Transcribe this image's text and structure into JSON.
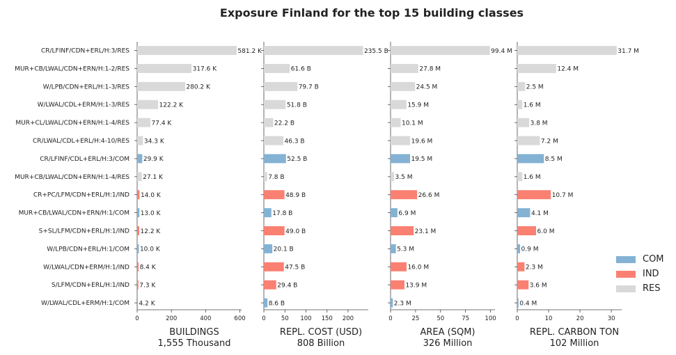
{
  "chart_data": {
    "type": "bar",
    "orientation": "horizontal",
    "title": "Exposure Finland for the top 15 building classes",
    "categories": [
      "CR/LFINF/CDN+ERL/H:3/RES",
      "MUR+CB/LWAL/CDN+ERN/H:1-2/RES",
      "W/LPB/CDN+ERL/H:1-3/RES",
      "W/LWAL/CDL+ERM/H:1-3/RES",
      "MUR+CL/LWAL/CDN+ERN/H:1-4/RES",
      "CR/LWAL/CDL+ERL/H:4-10/RES",
      "CR/LFINF/CDL+ERL/H:3/COM",
      "MUR+CB/LWAL/CDN+ERN/H:1-4/RES",
      "CR+PC/LFM/CDN+ERL/H:1/IND",
      "MUR+CB/LWAL/CDN+ERN/H:1/COM",
      "S+SL/LFM/CDN+ERL/H:1/IND",
      "W/LPB/CDN+ERL/H:1/COM",
      "W/LWAL/CDN+ERM/H:1/IND",
      "S/LFM/CDN+ERL/H:1/IND",
      "W/LWAL/CDL+ERM/H:1/COM"
    ],
    "occupancy": [
      "RES",
      "RES",
      "RES",
      "RES",
      "RES",
      "RES",
      "COM",
      "RES",
      "IND",
      "COM",
      "IND",
      "COM",
      "IND",
      "IND",
      "COM"
    ],
    "legend": [
      {
        "name": "COM",
        "color": "#84b2d4"
      },
      {
        "name": "IND",
        "color": "#fa8072"
      },
      {
        "name": "RES",
        "color": "#d9d9d9"
      }
    ],
    "legend_position": "right",
    "grid": false,
    "panels": [
      {
        "xlabel": "BUILDINGS",
        "sublabel": "1,555 Thousand",
        "xlim": [
          0,
          610
        ],
        "ticks": [
          0,
          200,
          400,
          600
        ],
        "tick_labels": [
          "0",
          "200",
          "400",
          "600"
        ],
        "values": [
          581.2,
          317.6,
          280.2,
          122.2,
          77.4,
          34.3,
          29.9,
          27.1,
          14.0,
          13.0,
          12.2,
          10.0,
          8.4,
          7.3,
          4.2
        ],
        "labels": [
          "581.2 K",
          "317.6 K",
          "280.2 K",
          "122.2 K",
          "77.4 K",
          "34.3 K",
          "29.9 K",
          "27.1 K",
          "14.0 K",
          "13.0 K",
          "12.2 K",
          "10.0 K",
          "8.4 K",
          "7.3 K",
          "4.2 K"
        ]
      },
      {
        "xlabel": "REPL. COST (USD)",
        "sublabel": "808 Billion",
        "xlim": [
          0,
          248
        ],
        "ticks": [
          0,
          50,
          100,
          150,
          200
        ],
        "tick_labels": [
          "0",
          "50",
          "100",
          "150",
          "200"
        ],
        "values": [
          235.5,
          61.6,
          79.7,
          51.8,
          22.2,
          46.3,
          52.5,
          7.8,
          48.9,
          17.8,
          49.0,
          20.1,
          47.5,
          29.4,
          8.6
        ],
        "labels": [
          "235.5 B",
          "61.6 B",
          "79.7 B",
          "51.8 B",
          "22.2 B",
          "46.3 B",
          "52.5 B",
          "7.8 B",
          "48.9 B",
          "17.8 B",
          "49.0 B",
          "20.1 B",
          "47.5 B",
          "29.4 B",
          "8.6 B"
        ]
      },
      {
        "xlabel": "AREA (SQM)",
        "sublabel": "326 Million",
        "xlim": [
          0,
          104.5
        ],
        "ticks": [
          0,
          25,
          50,
          75,
          100
        ],
        "tick_labels": [
          "0",
          "25",
          "50",
          "75",
          "100"
        ],
        "values": [
          99.4,
          27.8,
          24.5,
          15.9,
          10.1,
          19.6,
          19.5,
          3.5,
          26.6,
          6.9,
          23.1,
          5.3,
          16.0,
          13.9,
          2.3
        ],
        "labels": [
          "99.4 M",
          "27.8 M",
          "24.5 M",
          "15.9 M",
          "10.1 M",
          "19.6 M",
          "19.5 M",
          "3.5 M",
          "26.6 M",
          "6.9 M",
          "23.1 M",
          "5.3 M",
          "16.0 M",
          "13.9 M",
          "2.3 M"
        ]
      },
      {
        "xlabel": "REPL. CARBON TON",
        "sublabel": "102 Million",
        "xlim": [
          0,
          33.3
        ],
        "ticks": [
          0,
          10,
          20,
          30
        ],
        "tick_labels": [
          "0",
          "10",
          "20",
          "30"
        ],
        "values": [
          31.7,
          12.4,
          2.5,
          1.6,
          3.8,
          7.2,
          8.5,
          1.6,
          10.7,
          4.1,
          6.0,
          0.9,
          2.3,
          3.6,
          0.4
        ],
        "labels": [
          "31.7 M",
          "12.4 M",
          "2.5 M",
          "1.6 M",
          "3.8 M",
          "7.2 M",
          "8.5 M",
          "1.6 M",
          "10.7 M",
          "4.1 M",
          "6.0 M",
          "0.9 M",
          "2.3 M",
          "3.6 M",
          "0.4 M"
        ]
      }
    ]
  }
}
